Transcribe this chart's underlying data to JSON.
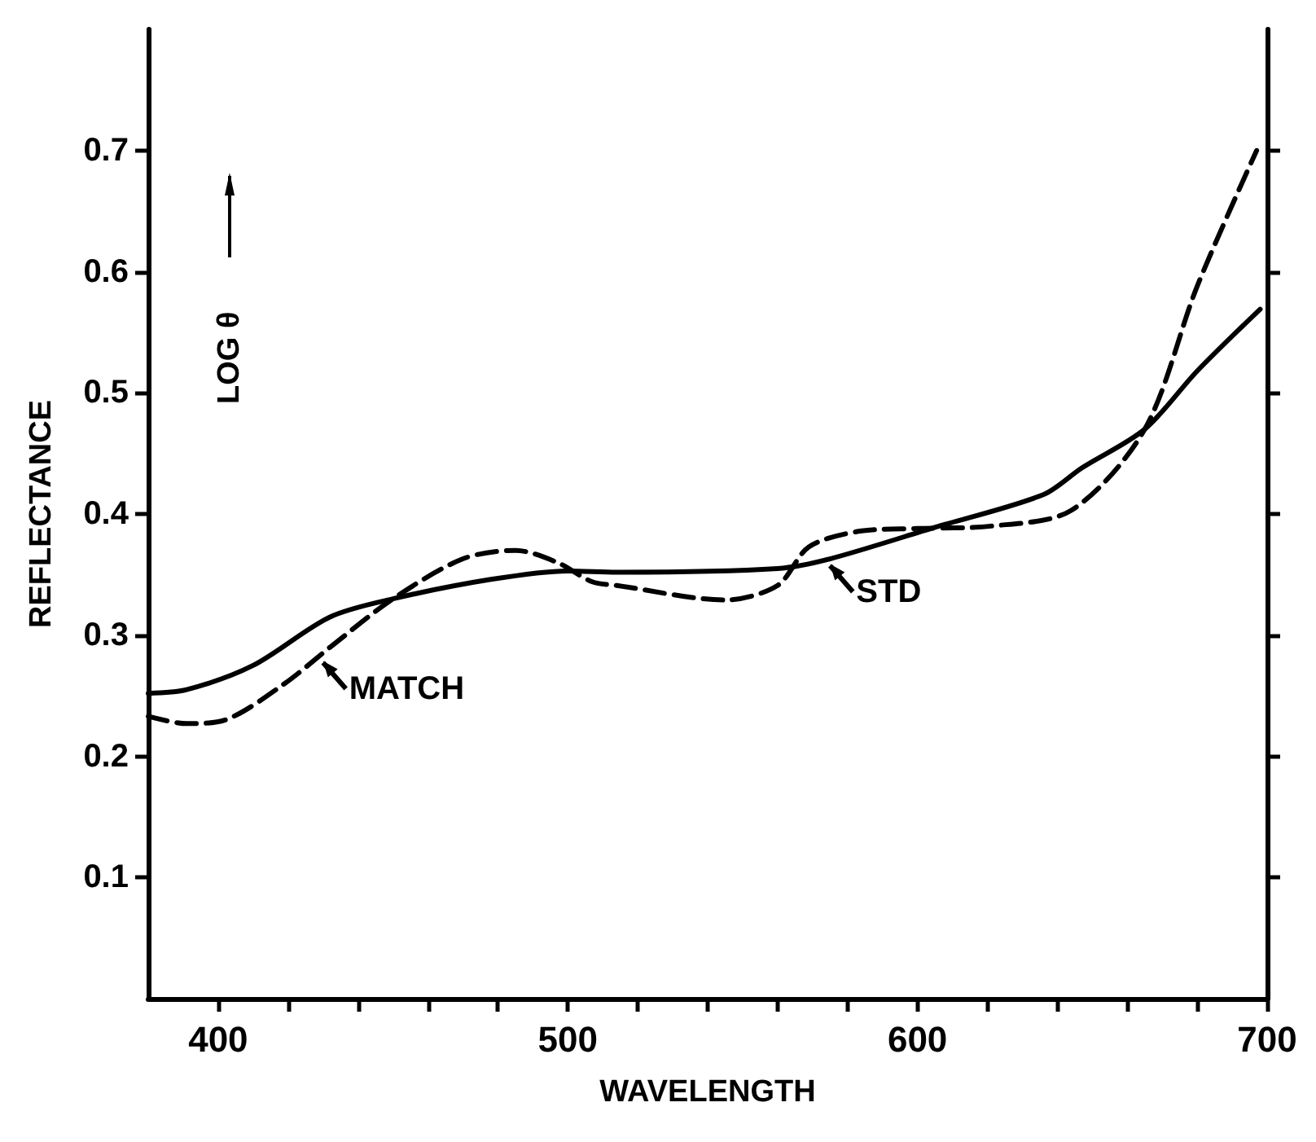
{
  "chart_data": {
    "type": "line",
    "xlabel": "WAVELENGTH",
    "ylabel": "REFLECTANCE",
    "xlim": [
      380,
      700
    ],
    "ylim": [
      0,
      0.8
    ],
    "xticks": [
      400,
      {
        "value": 420,
        "label": null
      },
      {
        "value": 440,
        "label": null
      },
      {
        "value": 460,
        "label": null
      },
      {
        "value": 480,
        "label": null
      },
      500,
      {
        "value": 520,
        "label": null
      },
      {
        "value": 540,
        "label": null
      },
      {
        "value": 560,
        "label": null
      },
      {
        "value": 580,
        "label": null
      },
      600,
      {
        "value": 620,
        "label": null
      },
      {
        "value": 640,
        "label": null
      },
      {
        "value": 660,
        "label": null
      },
      {
        "value": 680,
        "label": null
      },
      700
    ],
    "yticks": [
      0.1,
      0.2,
      0.3,
      0.4,
      0.5,
      0.6,
      0.7
    ],
    "grid": false,
    "marker": "none",
    "series": [
      {
        "color": "#000000",
        "line_style": "solid",
        "x": [
          380,
          391,
          410,
          432,
          450,
          478,
          500,
          514,
          560,
          575,
          605,
          636,
          647,
          665,
          680,
          698
        ],
        "values": [
          0.252,
          0.255,
          0.275,
          0.315,
          0.33,
          0.346,
          0.353,
          0.352,
          0.355,
          0.363,
          0.389,
          0.416,
          0.438,
          0.47,
          0.518,
          0.569
        ]
      },
      {
        "color": "#000000",
        "line_style": "dashed",
        "x": [
          380,
          391,
          402,
          419,
          432,
          450,
          470,
          485,
          497,
          507,
          514,
          545,
          560,
          569,
          584,
          600,
          621,
          644,
          665,
          680,
          697
        ],
        "values": [
          0.233,
          0.227,
          0.23,
          0.26,
          0.29,
          0.33,
          0.363,
          0.37,
          0.36,
          0.344,
          0.341,
          0.329,
          0.341,
          0.373,
          0.386,
          0.388,
          0.39,
          0.403,
          0.47,
          0.588,
          0.7
        ]
      }
    ],
    "annotations": [
      {
        "text": "MATCH",
        "x": 430,
        "y": 0.28
      },
      {
        "text": "STD",
        "x": 575,
        "y": 0.36
      },
      "LOG θ"
    ]
  }
}
